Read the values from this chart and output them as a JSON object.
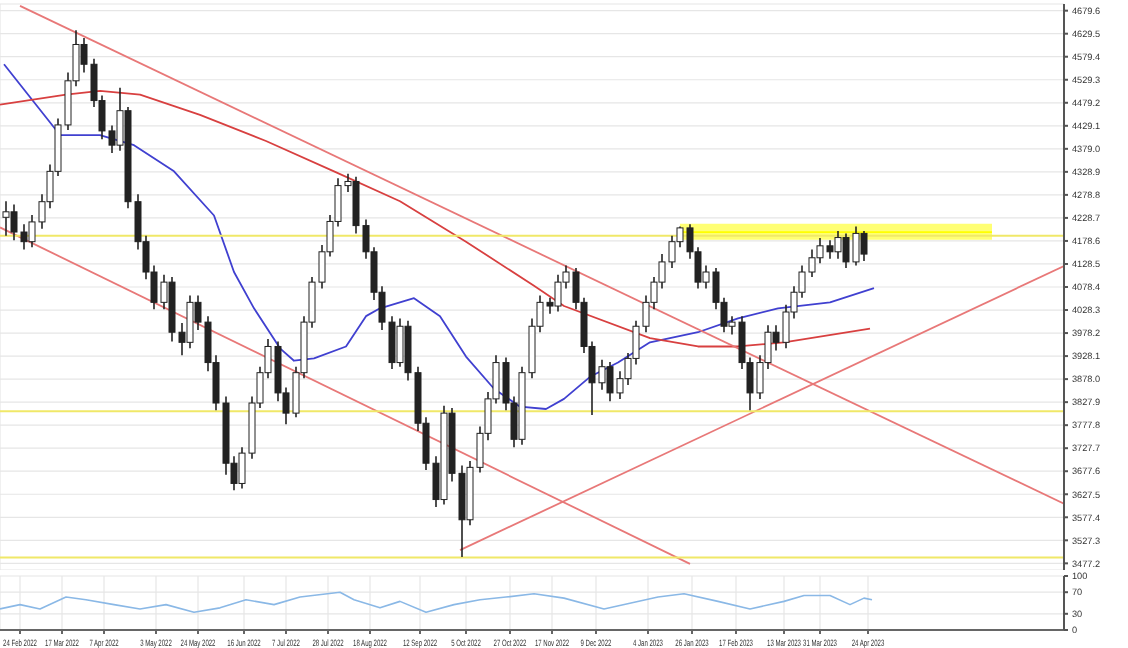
{
  "chart_data": [
    {
      "type": "candlestick",
      "color": "#222222",
      "xlim": [
        "2022-02-14",
        "2023-07-31"
      ],
      "ylim": [
        3462.7,
        4694.1
      ],
      "grid": true,
      "tick_labels": "y",
      "x": [
        "2022-02-17",
        "2022-02-21",
        "2022-02-26",
        "2022-03-02",
        "2022-03-07",
        "2022-03-11",
        "2022-03-15",
        "2022-03-20",
        "2022-03-24",
        "2022-03-28",
        "2022-04-02",
        "2022-04-06",
        "2022-04-11",
        "2022-04-15",
        "2022-04-19",
        "2022-04-24",
        "2022-04-28",
        "2022-05-02",
        "2022-05-07",
        "2022-05-11",
        "2022-05-16",
        "2022-05-20",
        "2022-05-24",
        "2022-05-29",
        "2022-06-02",
        "2022-06-07",
        "2022-06-11",
        "2022-06-15",
        "2022-06-20",
        "2022-06-24",
        "2022-06-28",
        "2022-07-03",
        "2022-07-07",
        "2022-07-12",
        "2022-07-16",
        "2022-07-20",
        "2022-07-25",
        "2022-07-29",
        "2022-08-02",
        "2022-08-07",
        "2022-08-11",
        "2022-08-16",
        "2022-08-20",
        "2022-08-24",
        "2022-08-29",
        "2022-09-02",
        "2022-09-06",
        "2022-09-11",
        "2022-09-15",
        "2022-09-20",
        "2022-09-24",
        "2022-09-28",
        "2022-10-03",
        "2022-10-07",
        "2022-10-12",
        "2022-10-16",
        "2022-10-20",
        "2022-10-25",
        "2022-10-29",
        "2022-11-02",
        "2022-11-07",
        "2022-11-11",
        "2022-11-16",
        "2022-11-20",
        "2022-11-24",
        "2022-11-29",
        "2022-12-03",
        "2022-12-07",
        "2022-12-12",
        "2022-12-16",
        "2022-12-21",
        "2022-12-25",
        "2022-12-29",
        "2023-01-03",
        "2023-01-07",
        "2023-01-11",
        "2023-01-16",
        "2023-01-20",
        "2023-01-25",
        "2023-01-29",
        "2023-02-02",
        "2023-02-07",
        "2023-02-11",
        "2023-02-15",
        "2023-02-20",
        "2023-02-24",
        "2023-03-01",
        "2023-03-05",
        "2023-03-09",
        "2023-03-14",
        "2023-03-18",
        "2023-03-22",
        "2023-03-27",
        "2023-03-31",
        "2023-04-05",
        "2023-04-09",
        "2023-04-13",
        "2023-04-18",
        "2023-04-22"
      ],
      "ohlc": [
        [
          4230,
          4265,
          4190,
          4242
        ],
        [
          4242,
          4258,
          4180,
          4198
        ],
        [
          4198,
          4215,
          4160,
          4177
        ],
        [
          4177,
          4235,
          4165,
          4220
        ],
        [
          4220,
          4280,
          4205,
          4264
        ],
        [
          4264,
          4345,
          4250,
          4330
        ],
        [
          4330,
          4445,
          4320,
          4431
        ],
        [
          4431,
          4545,
          4420,
          4527
        ],
        [
          4527,
          4637,
          4515,
          4606
        ],
        [
          4606,
          4620,
          4545,
          4563
        ],
        [
          4563,
          4575,
          4470,
          4484
        ],
        [
          4484,
          4495,
          4400,
          4418
        ],
        [
          4418,
          4430,
          4370,
          4387
        ],
        [
          4387,
          4512,
          4375,
          4462
        ],
        [
          4462,
          4470,
          4250,
          4264
        ],
        [
          4264,
          4280,
          4160,
          4177
        ],
        [
          4177,
          4190,
          4095,
          4111
        ],
        [
          4111,
          4125,
          4030,
          4045
        ],
        [
          4045,
          4105,
          4030,
          4089
        ],
        [
          4089,
          4100,
          3960,
          3980
        ],
        [
          3980,
          4000,
          3930,
          3958
        ],
        [
          3958,
          4060,
          3945,
          4045
        ],
        [
          4045,
          4060,
          3985,
          4002
        ],
        [
          4002,
          4015,
          3895,
          3914
        ],
        [
          3914,
          3930,
          3810,
          3826
        ],
        [
          3826,
          3840,
          3670,
          3695
        ],
        [
          3695,
          3710,
          3636,
          3651
        ],
        [
          3651,
          3730,
          3640,
          3717
        ],
        [
          3717,
          3840,
          3705,
          3826
        ],
        [
          3826,
          3905,
          3815,
          3892
        ],
        [
          3892,
          3965,
          3880,
          3949
        ],
        [
          3949,
          3960,
          3830,
          3848
        ],
        [
          3848,
          3860,
          3780,
          3804
        ],
        [
          3804,
          3905,
          3795,
          3892
        ],
        [
          3892,
          4015,
          3880,
          4002
        ],
        [
          4002,
          4100,
          3990,
          4089
        ],
        [
          4089,
          4170,
          4075,
          4155
        ],
        [
          4155,
          4235,
          4145,
          4221
        ],
        [
          4221,
          4315,
          4210,
          4299
        ],
        [
          4299,
          4325,
          4285,
          4308
        ],
        [
          4308,
          4318,
          4195,
          4212
        ],
        [
          4212,
          4225,
          4140,
          4155
        ],
        [
          4155,
          4165,
          4050,
          4067
        ],
        [
          4067,
          4080,
          3985,
          4002
        ],
        [
          4002,
          4015,
          3900,
          3914
        ],
        [
          3914,
          4010,
          3905,
          3993
        ],
        [
          3993,
          4005,
          3875,
          3892
        ],
        [
          3892,
          3905,
          3765,
          3782
        ],
        [
          3782,
          3795,
          3680,
          3695
        ],
        [
          3695,
          3710,
          3600,
          3616
        ],
        [
          3616,
          3820,
          3605,
          3804
        ],
        [
          3804,
          3815,
          3655,
          3673
        ],
        [
          3673,
          3690,
          3491,
          3572
        ],
        [
          3572,
          3700,
          3560,
          3686
        ],
        [
          3686,
          3775,
          3675,
          3760
        ],
        [
          3760,
          3850,
          3745,
          3835
        ],
        [
          3835,
          3930,
          3825,
          3914
        ],
        [
          3914,
          3925,
          3810,
          3826
        ],
        [
          3826,
          3840,
          3730,
          3747
        ],
        [
          3747,
          3905,
          3735,
          3892
        ],
        [
          3892,
          4010,
          3880,
          3993
        ],
        [
          3993,
          4060,
          3980,
          4045
        ],
        [
          4045,
          4055,
          4020,
          4037
        ],
        [
          4037,
          4105,
          4025,
          4089
        ],
        [
          4089,
          4125,
          4075,
          4111
        ],
        [
          4111,
          4120,
          4030,
          4045
        ],
        [
          4045,
          4055,
          3935,
          3949
        ],
        [
          3949,
          3960,
          3800,
          3870
        ],
        [
          3870,
          3920,
          3855,
          3905
        ],
        [
          3905,
          3915,
          3830,
          3848
        ],
        [
          3848,
          3895,
          3835,
          3879
        ],
        [
          3879,
          3935,
          3865,
          3923
        ],
        [
          3923,
          4005,
          3910,
          3993
        ],
        [
          3993,
          4060,
          3980,
          4045
        ],
        [
          4045,
          4100,
          4030,
          4089
        ],
        [
          4089,
          4150,
          4075,
          4133
        ],
        [
          4133,
          4190,
          4120,
          4177
        ],
        [
          4177,
          4210,
          4165,
          4207
        ],
        [
          4207,
          4215,
          4140,
          4155
        ],
        [
          4155,
          4165,
          4075,
          4089
        ],
        [
          4089,
          4125,
          4075,
          4111
        ],
        [
          4111,
          4120,
          4030,
          4045
        ],
        [
          4045,
          4055,
          3980,
          3993
        ],
        [
          3993,
          4015,
          3975,
          4002
        ],
        [
          4002,
          4015,
          3900,
          3914
        ],
        [
          3914,
          3925,
          3810,
          3848
        ],
        [
          3848,
          3930,
          3835,
          3914
        ],
        [
          3914,
          3995,
          3900,
          3980
        ],
        [
          3980,
          3995,
          3940,
          3958
        ],
        [
          3958,
          4040,
          3945,
          4024
        ],
        [
          4024,
          4080,
          4010,
          4067
        ],
        [
          4067,
          4125,
          4055,
          4111
        ],
        [
          4111,
          4160,
          4100,
          4142
        ],
        [
          4142,
          4185,
          4130,
          4168
        ],
        [
          4168,
          4180,
          4140,
          4155
        ],
        [
          4155,
          4200,
          4140,
          4186
        ],
        [
          4186,
          4195,
          4120,
          4133
        ],
        [
          4133,
          4210,
          4125,
          4195
        ],
        [
          4195,
          4200,
          4135,
          4150
        ]
      ],
      "series": [
        {
          "type": "line",
          "color": "#4040d0",
          "x": [
            "2022-02-16",
            "2022-03-16",
            "2022-04-05",
            "2022-04-22",
            "2022-05-12",
            "2022-06-01",
            "2022-06-11",
            "2022-06-21",
            "2022-07-04",
            "2022-07-11",
            "2022-07-21",
            "2022-08-06",
            "2022-08-16",
            "2022-08-23",
            "2022-09-09",
            "2022-09-22",
            "2022-10-05",
            "2022-10-19",
            "2022-11-01",
            "2022-11-14",
            "2022-11-23",
            "2022-12-06",
            "2022-12-20",
            "2023-01-05",
            "2023-01-29",
            "2023-02-18",
            "2023-03-10",
            "2023-04-05",
            "2023-04-27"
          ],
          "values": [
            4563,
            4409,
            4409,
            4387,
            4330,
            4234,
            4111,
            4032,
            3945,
            3918,
            3923,
            3949,
            4015,
            4032,
            4054,
            4015,
            3927,
            3857,
            3818,
            3813,
            3835,
            3883,
            3914,
            3958,
            3980,
            4010,
            4032,
            4045,
            4076
          ]
        },
        {
          "type": "line",
          "color": "#d84040",
          "x": [
            "2022-02-14",
            "2022-03-19",
            "2022-04-05",
            "2022-04-25",
            "2022-05-25",
            "2022-06-27",
            "2022-07-31",
            "2022-09-02",
            "2022-10-05",
            "2022-11-08",
            "2022-11-23",
            "2023-01-05",
            "2023-01-29",
            "2023-02-18",
            "2023-03-13",
            "2023-04-25"
          ],
          "values": [
            4475,
            4497,
            4505,
            4497,
            4453,
            4396,
            4330,
            4265,
            4177,
            4081,
            4037,
            3967,
            3949,
            3949,
            3958,
            3988
          ]
        },
        {
          "type": "line",
          "color": "#e87878",
          "x": [
            "2022-02-24",
            "2023-07-31"
          ],
          "values": [
            4690,
            3607
          ]
        },
        {
          "type": "line",
          "color": "#e87878",
          "x": [
            "2022-02-14",
            "2023-01-25"
          ],
          "values": [
            4208,
            3476
          ]
        },
        {
          "type": "line",
          "color": "#e87878",
          "x": [
            "2022-10-02",
            "2023-07-31"
          ],
          "values": [
            3506,
            4124
          ]
        },
        {
          "type": "line",
          "color": "#ffff00",
          "x": [
            "2023-01-20",
            "2023-06-25"
          ],
          "values": [
            4198,
            4198
          ],
          "lower": [
            4181,
            4181
          ],
          "upper": [
            4216,
            4216
          ]
        }
      ],
      "ref_lines": [
        {
          "axis": "y",
          "value": 4190,
          "color": "#f0e868"
        },
        {
          "axis": "y",
          "value": 3808,
          "color": "#f0e868"
        },
        {
          "axis": "y",
          "value": 3490,
          "color": "#f0e868"
        }
      ],
      "xticks": [
        "2022-02-24",
        "2022-03-17",
        "2022-04-07",
        "2022-05-03",
        "2022-05-24",
        "2022-06-16",
        "2022-07-07",
        "2022-07-28",
        "2022-08-18",
        "2022-09-12",
        "2022-10-05",
        "2022-10-27",
        "2022-11-17",
        "2022-12-09",
        "2023-01-04",
        "2023-01-26",
        "2023-02-17",
        "2023-03-13",
        "2023-03-31",
        "2023-04-24"
      ],
      "yticks": [
        {
          "value": 3477.2,
          "label": "3477.2"
        },
        {
          "value": 3527.3,
          "label": "3527.3"
        },
        {
          "value": 3577.4,
          "label": "3577.4"
        },
        {
          "value": 3627.5,
          "label": "3627.5"
        },
        {
          "value": 3677.6,
          "label": "3677.6"
        },
        {
          "value": 3727.7,
          "label": "3727.7"
        },
        {
          "value": 3777.8,
          "label": "3777.8"
        },
        {
          "value": 3827.9,
          "label": "3827.9"
        },
        {
          "value": 3878,
          "label": "3878.0"
        },
        {
          "value": 3928.1,
          "label": "3928.1"
        },
        {
          "value": 3978.2,
          "label": "3978.2"
        },
        {
          "value": 4028.3,
          "label": "4028.3"
        },
        {
          "value": 4078.4,
          "label": "4078.4"
        },
        {
          "value": 4128.5,
          "label": "4128.5"
        },
        {
          "value": 4178.6,
          "label": "4178.6"
        },
        {
          "value": 4228.7,
          "label": "4228.7"
        },
        {
          "value": 4278.8,
          "label": "4278.8"
        },
        {
          "value": 4328.9,
          "label": "4328.9"
        },
        {
          "value": 4379,
          "label": "4379.0"
        },
        {
          "value": 4429.1,
          "label": "4429.1"
        },
        {
          "value": 4479.2,
          "label": "4479.2"
        },
        {
          "value": 4529.3,
          "label": "4529.3"
        },
        {
          "value": 4579.4,
          "label": "4579.4"
        },
        {
          "value": 4629.5,
          "label": "4629.5"
        },
        {
          "value": 4679.6,
          "label": "4679.6"
        }
      ]
    },
    {
      "type": "line",
      "color": "#8ab8e6",
      "xlim": [
        "2022-02-14",
        "2023-07-31"
      ],
      "ylim": [
        0,
        100
      ],
      "yticks": [
        0,
        30,
        70,
        100
      ],
      "grid": true,
      "x": [
        "2022-02-14",
        "2022-02-24",
        "2022-03-06",
        "2022-03-19",
        "2022-03-29",
        "2022-04-12",
        "2022-04-25",
        "2022-05-08",
        "2022-05-22",
        "2022-06-04",
        "2022-06-17",
        "2022-07-01",
        "2022-07-14",
        "2022-08-03",
        "2022-08-10",
        "2022-08-23",
        "2022-09-02",
        "2022-09-15",
        "2022-09-29",
        "2022-10-12",
        "2022-10-25",
        "2022-11-08",
        "2022-11-23",
        "2022-12-13",
        "2023-01-09",
        "2023-01-22",
        "2023-02-08",
        "2023-02-24",
        "2023-03-13",
        "2023-03-23",
        "2023-04-05",
        "2023-04-15",
        "2023-04-22",
        "2023-04-26"
      ],
      "values": [
        39,
        47,
        39,
        61,
        56,
        47,
        39,
        47,
        33,
        41,
        56,
        47,
        61,
        70,
        56,
        41,
        53,
        33,
        47,
        56,
        61,
        67,
        59,
        39,
        61,
        67,
        53,
        39,
        53,
        64,
        64,
        47,
        59,
        56
      ],
      "xticks": [
        {
          "value": "2022-02-24",
          "label": "24 Feb 2022"
        },
        {
          "value": "2022-03-17",
          "label": "17 Mar 2022"
        },
        {
          "value": "2022-04-07",
          "label": "7 Apr 2022"
        },
        {
          "value": "2022-05-03",
          "label": "3 May 2022"
        },
        {
          "value": "2022-05-24",
          "label": "24 May 2022"
        },
        {
          "value": "2022-06-16",
          "label": "16 Jun 2022"
        },
        {
          "value": "2022-07-07",
          "label": "7 Jul 2022"
        },
        {
          "value": "2022-07-28",
          "label": "28 Jul 2022"
        },
        {
          "value": "2022-08-18",
          "label": "18 Aug 2022"
        },
        {
          "value": "2022-09-12",
          "label": "12 Sep 2022"
        },
        {
          "value": "2022-10-05",
          "label": "5 Oct 2022"
        },
        {
          "value": "2022-10-27",
          "label": "27 Oct 2022"
        },
        {
          "value": "2022-11-17",
          "label": "17 Nov 2022"
        },
        {
          "value": "2022-12-09",
          "label": "9 Dec 2022"
        },
        {
          "value": "2023-01-04",
          "label": "4 Jan 2023"
        },
        {
          "value": "2023-01-26",
          "label": "26 Jan 2023"
        },
        {
          "value": "2023-02-17",
          "label": "17 Feb 2023"
        },
        {
          "value": "2023-03-13",
          "label": "13 Mar 2023"
        },
        {
          "value": "2023-03-31",
          "label": "31 Mar 2023"
        },
        {
          "value": "2023-04-24",
          "label": "24 Apr 2023"
        }
      ]
    }
  ]
}
